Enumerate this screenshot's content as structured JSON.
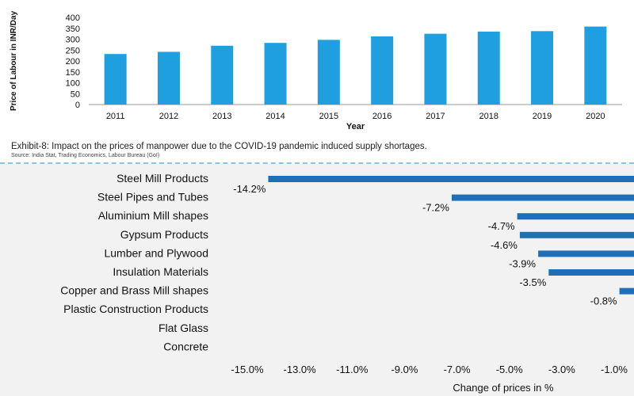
{
  "chart_data": [
    {
      "type": "bar",
      "title": "",
      "xlabel": "Year",
      "ylabel": "Price of Labour in INR/Day",
      "ylim": [
        0,
        400
      ],
      "yticks": [
        0,
        50,
        100,
        150,
        200,
        250,
        300,
        350,
        400
      ],
      "categories": [
        "2011",
        "2012",
        "2013",
        "2014",
        "2015",
        "2016",
        "2017",
        "2018",
        "2019",
        "2020"
      ],
      "values": [
        232,
        242,
        270,
        283,
        297,
        313,
        325,
        335,
        337,
        358
      ],
      "bar_color": "#1f9fe0",
      "grid": false,
      "caption": "Exhibit-8: Impact on the prices of manpower due to the COVID-19 pandemic induced supply shortages.",
      "source": "Source: India Stat, Trading Economics, Labour Bureau (GoI)"
    },
    {
      "type": "bar",
      "orientation": "horizontal",
      "title": "",
      "xlabel": "Change of prices in %",
      "ylabel": "",
      "xlim": [
        -15.0,
        -1.0
      ],
      "xticks": [
        "-15.0%",
        "-13.0%",
        "-11.0%",
        "-9.0%",
        "-7.0%",
        "-5.0%",
        "-3.0%",
        "-1.0%"
      ],
      "categories": [
        "Steel Mill Products",
        "Steel Pipes and Tubes",
        "Aluminium Mill shapes",
        "Gypsum Products",
        "Lumber and Plywood",
        "Insulation Materials",
        "Copper and Brass Mill shapes",
        "Plastic Construction Products",
        "Flat Glass",
        "Concrete"
      ],
      "values": [
        -14.2,
        -7.2,
        -4.7,
        -4.6,
        -3.9,
        -3.5,
        -0.8,
        null,
        null,
        null
      ],
      "labels": [
        "-14.2%",
        "-7.2%",
        "-4.7%",
        "-4.6%",
        "-3.9%",
        "-3.5%",
        "-0.8%",
        "",
        "",
        ""
      ],
      "bar_color": "#1f6fb8",
      "grid": false
    }
  ]
}
